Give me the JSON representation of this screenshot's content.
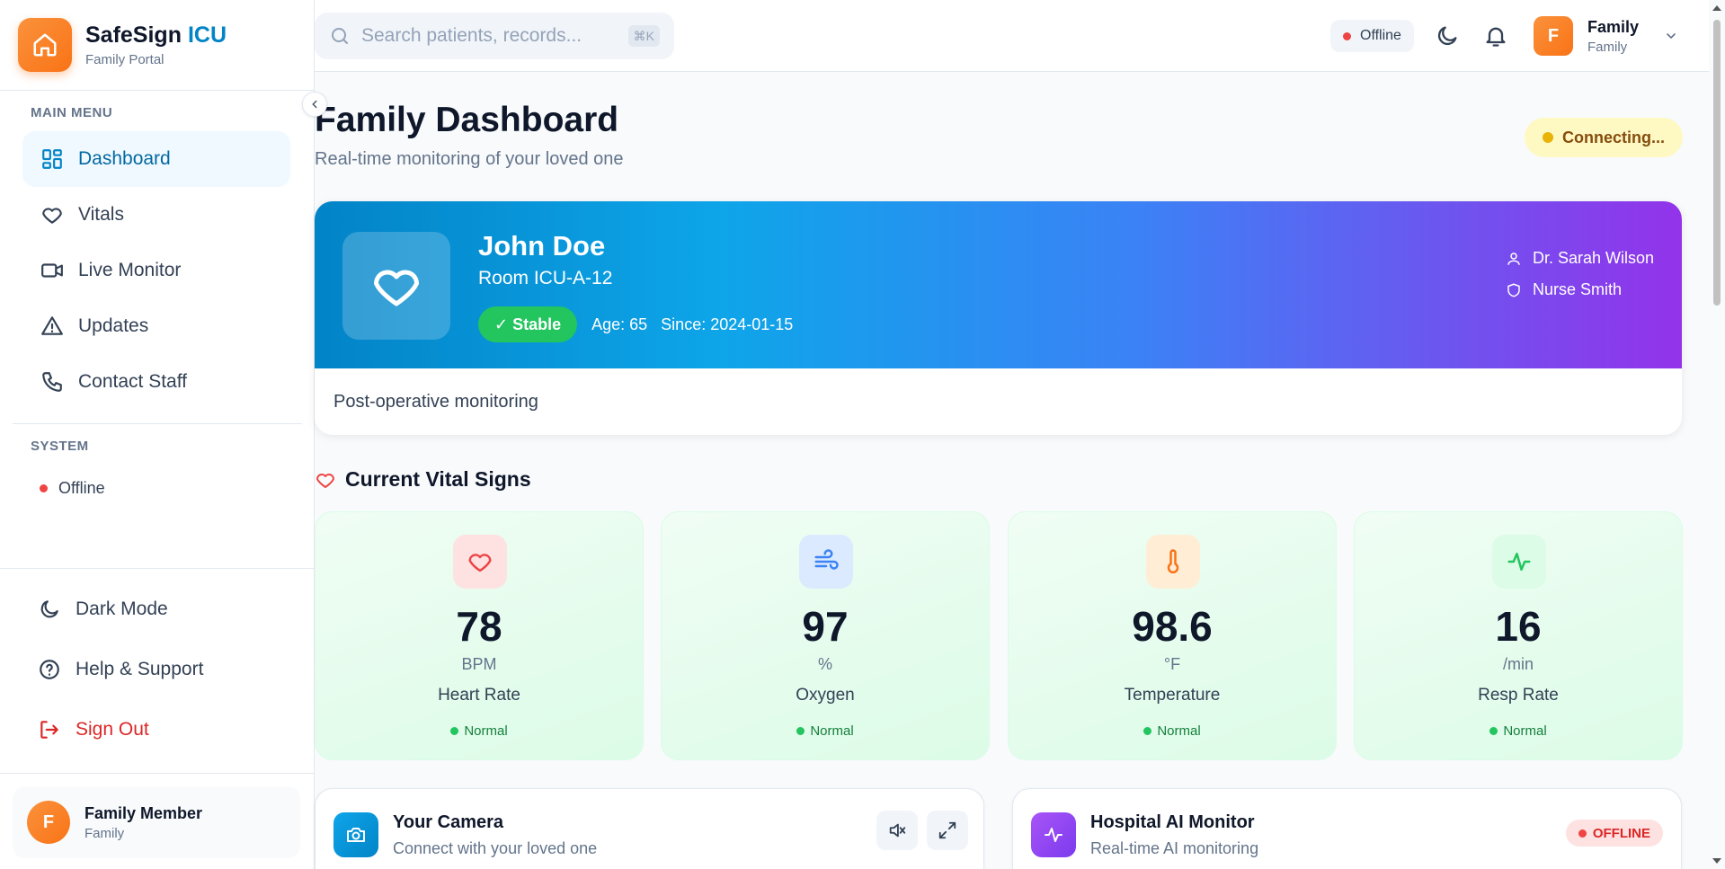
{
  "sidebar": {
    "brand_name": "SafeSign",
    "brand_accent": "ICU",
    "brand_sub": "Family Portal",
    "main_menu_title": "MAIN MENU",
    "items": [
      {
        "label": "Dashboard",
        "icon": "dashboard-icon",
        "active": true
      },
      {
        "label": "Vitals",
        "icon": "heart-icon"
      },
      {
        "label": "Live Monitor",
        "icon": "video-icon"
      },
      {
        "label": "Updates",
        "icon": "alert-triangle-icon"
      },
      {
        "label": "Contact Staff",
        "icon": "phone-icon"
      }
    ],
    "system_title": "SYSTEM",
    "system_status": "Offline",
    "bottom": {
      "dark_mode": "Dark Mode",
      "help": "Help & Support",
      "sign_out": "Sign Out"
    },
    "user": {
      "initial": "F",
      "name": "Family Member",
      "role": "Family"
    }
  },
  "topbar": {
    "search_placeholder": "Search patients, records...",
    "shortcut": "⌘K",
    "status": "Offline",
    "user": {
      "initial": "F",
      "name": "Family",
      "role": "Family"
    }
  },
  "page": {
    "title": "Family Dashboard",
    "subtitle": "Real-time monitoring of your loved one",
    "connection": "Connecting..."
  },
  "patient": {
    "name": "John Doe",
    "room": "Room ICU-A-12",
    "status": "✓ Stable",
    "age": "Age: 65",
    "since": "Since: 2024-01-15",
    "doctor": "Dr. Sarah Wilson",
    "nurse": "Nurse Smith",
    "note": "Post-operative monitoring"
  },
  "vitals": {
    "title": "Current Vital Signs",
    "items": [
      {
        "value": "78",
        "unit": "BPM",
        "label": "Heart Rate",
        "status": "Normal",
        "icon": "heart-icon",
        "color": "#ef4444",
        "bg": "#fee2e2"
      },
      {
        "value": "97",
        "unit": "%",
        "label": "Oxygen",
        "status": "Normal",
        "icon": "wind-icon",
        "color": "#3b82f6",
        "bg": "#dbeafe"
      },
      {
        "value": "98.6",
        "unit": "°F",
        "label": "Temperature",
        "status": "Normal",
        "icon": "thermometer-icon",
        "color": "#f97316",
        "bg": "#ffedd5"
      },
      {
        "value": "16",
        "unit": "/min",
        "label": "Resp Rate",
        "status": "Normal",
        "icon": "activity-icon",
        "color": "#22c55e",
        "bg": "#dcfce7"
      }
    ]
  },
  "camera": {
    "title": "Your Camera",
    "subtitle": "Connect with your loved one"
  },
  "ai_monitor": {
    "title": "Hospital AI Monitor",
    "subtitle": "Real-time AI monitoring",
    "badge": "OFFLINE"
  }
}
